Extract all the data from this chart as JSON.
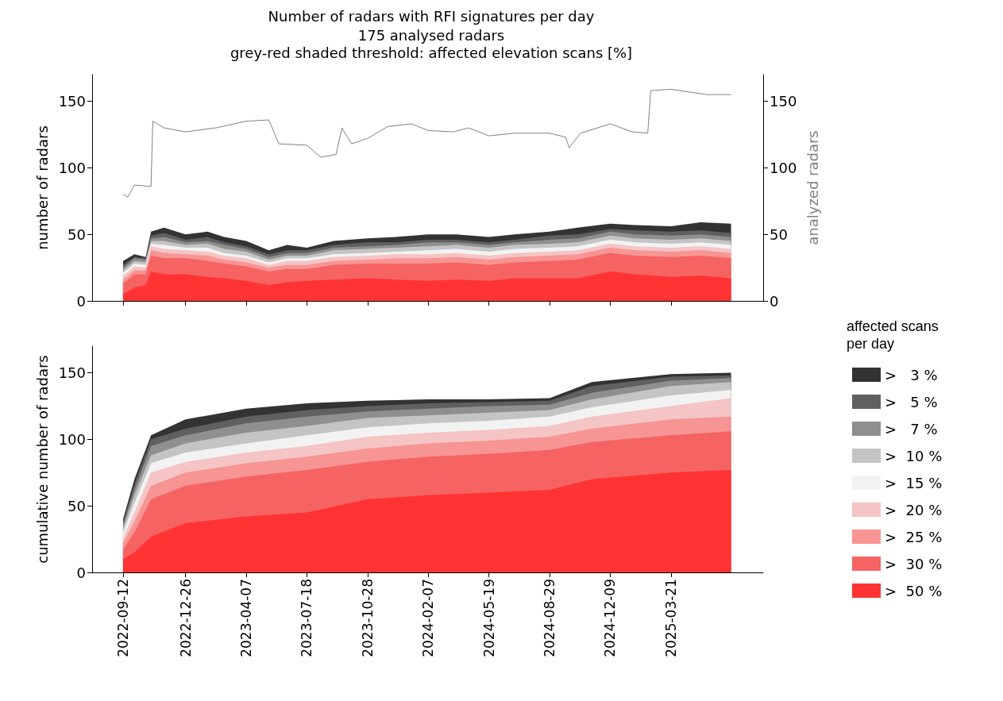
{
  "chart_data": [
    {
      "type": "area",
      "title": "Number of radars with RFI signatures per day",
      "subtitle": "175 analysed radars\ngrey-red shaded threshold: affected elevation scans [%]",
      "ylabel": "number of radars",
      "y2label": "analyzed radars",
      "stacked": true,
      "grid": false,
      "legend": false,
      "tick_labels": "y",
      "x": [
        "2022-09-12",
        "2022-10-01",
        "2022-10-20",
        "2022-10-29",
        "2022-11-20",
        "2022-12-26",
        "2023-02-01",
        "2023-03-01",
        "2023-04-07",
        "2023-05-15",
        "2023-06-15",
        "2023-07-18",
        "2023-09-01",
        "2023-10-28",
        "2023-12-15",
        "2024-02-07",
        "2024-03-25",
        "2024-05-19",
        "2024-07-01",
        "2024-08-29",
        "2024-10-15",
        "2024-12-09",
        "2025-01-20",
        "2025-03-21",
        "2025-05-10",
        "2025-06-30"
      ],
      "xlim": [
        "2022-07-22",
        "2025-08-23"
      ],
      "xticks": [
        "2022-09-12",
        "2022-12-26",
        "2023-04-07",
        "2023-07-18",
        "2023-10-28",
        "2024-02-07",
        "2024-05-19",
        "2024-08-29",
        "2024-12-09",
        "2025-03-21"
      ],
      "ylim": [
        0,
        170
      ],
      "yticks": [
        0,
        50,
        100,
        150
      ],
      "y2lim": [
        0,
        170
      ],
      "y2ticks": [
        0,
        50,
        100,
        150
      ],
      "series": [
        {
          "color": "#ff3333",
          "values": [
            5,
            10,
            12,
            22,
            20,
            20,
            18,
            17,
            15,
            12,
            14,
            15,
            16,
            17,
            16,
            15,
            16,
            15,
            17,
            17,
            17,
            22,
            20,
            18,
            19,
            17
          ]
        },
        {
          "color": "#f56363",
          "values": [
            8,
            10,
            8,
            12,
            12,
            12,
            12,
            11,
            11,
            10,
            10,
            9,
            11,
            11,
            12,
            13,
            13,
            12,
            12,
            13,
            14,
            14,
            14,
            15,
            15,
            15
          ]
        },
        {
          "color": "#f79494",
          "values": [
            3,
            3,
            3,
            4,
            4,
            3,
            4,
            3,
            3,
            3,
            3,
            3,
            3,
            3,
            4,
            4,
            4,
            4,
            4,
            4,
            4,
            4,
            4,
            4,
            4,
            4
          ]
        },
        {
          "color": "#f5c4c4",
          "values": [
            3,
            3,
            2,
            3,
            3,
            3,
            3,
            3,
            3,
            2,
            3,
            3,
            3,
            3,
            3,
            3,
            3,
            3,
            3,
            3,
            3,
            3,
            3,
            3,
            3,
            3
          ]
        },
        {
          "color": "#f2f2f2",
          "values": [
            2,
            2,
            2,
            2,
            3,
            2,
            3,
            2,
            2,
            2,
            2,
            2,
            2,
            2,
            2,
            3,
            3,
            3,
            3,
            3,
            3,
            3,
            3,
            3,
            3,
            3
          ]
        },
        {
          "color": "#c4c4c4",
          "values": [
            2,
            2,
            2,
            2,
            3,
            2,
            3,
            3,
            3,
            2,
            2,
            2,
            3,
            3,
            3,
            3,
            3,
            3,
            3,
            3,
            3,
            3,
            3,
            3,
            3,
            3
          ]
        },
        {
          "color": "#8f8f8f",
          "values": [
            2,
            2,
            2,
            2,
            3,
            2,
            2,
            3,
            2,
            2,
            2,
            2,
            2,
            2,
            2,
            3,
            2,
            2,
            2,
            3,
            3,
            3,
            3,
            3,
            3,
            3
          ]
        },
        {
          "color": "#606060",
          "values": [
            2,
            1,
            1,
            2,
            3,
            2,
            3,
            2,
            2,
            2,
            2,
            2,
            2,
            3,
            2,
            2,
            2,
            2,
            2,
            3,
            3,
            2,
            3,
            3,
            3,
            3
          ]
        },
        {
          "color": "#333333",
          "values": [
            3,
            2,
            1,
            3,
            4,
            4,
            4,
            4,
            4,
            3,
            4,
            2,
            3,
            3,
            4,
            4,
            4,
            4,
            4,
            3,
            5,
            4,
            4,
            4,
            6,
            7
          ]
        },
        {
          "type": "line",
          "axis": "y2",
          "color": "#808080",
          "x": [
            "2022-09-12",
            "2022-09-20",
            "2022-10-01",
            "2022-10-29",
            "2022-11-01",
            "2022-11-20",
            "2022-12-26",
            "2023-02-15",
            "2023-04-07",
            "2023-05-15",
            "2023-06-01",
            "2023-07-18",
            "2023-08-10",
            "2023-09-05",
            "2023-09-15",
            "2023-10-01",
            "2023-10-28",
            "2023-12-01",
            "2024-01-10",
            "2024-02-07",
            "2024-03-20",
            "2024-04-15",
            "2024-05-19",
            "2024-07-01",
            "2024-08-29",
            "2024-09-25",
            "2024-10-01",
            "2024-10-20",
            "2024-12-09",
            "2025-01-15",
            "2025-02-10",
            "2025-02-15",
            "2025-03-21",
            "2025-04-20",
            "2025-05-20",
            "2025-06-30"
          ],
          "values": [
            80,
            78,
            87,
            86,
            135,
            130,
            127,
            130,
            135,
            136,
            118,
            117,
            108,
            110,
            130,
            118,
            122,
            131,
            133,
            128,
            127,
            130,
            124,
            126,
            126,
            123,
            115,
            126,
            133,
            127,
            126,
            158,
            159,
            157,
            155,
            155
          ]
        }
      ]
    },
    {
      "type": "area",
      "ylabel": "cumulative number of radars",
      "stacked": true,
      "grid": false,
      "legend": "right",
      "legend_title": "affected scans per day",
      "x": [
        "2022-09-12",
        "2022-10-01",
        "2022-10-29",
        "2022-12-26",
        "2023-04-07",
        "2023-07-18",
        "2023-10-28",
        "2024-02-07",
        "2024-05-19",
        "2024-08-29",
        "2024-11-08",
        "2025-03-21",
        "2025-06-30"
      ],
      "xlim": [
        "2022-07-22",
        "2025-08-23"
      ],
      "xticks": [
        "2022-09-12",
        "2022-12-26",
        "2023-04-07",
        "2023-07-18",
        "2023-10-28",
        "2024-02-07",
        "2024-05-19",
        "2024-08-29",
        "2024-12-09",
        "2025-03-21"
      ],
      "ylim": [
        0,
        170
      ],
      "yticks": [
        0,
        50,
        100,
        150
      ],
      "series": [
        {
          "name": ">  50 %",
          "color": "#ff3333",
          "values": [
            10,
            15,
            27,
            37,
            42,
            45,
            55,
            58,
            60,
            62,
            70,
            75,
            77
          ]
        },
        {
          "name": ">  30 %",
          "color": "#f56363",
          "values": [
            7,
            15,
            28,
            28,
            30,
            32,
            28,
            29,
            29,
            30,
            28,
            28,
            29
          ]
        },
        {
          "name": ">  25 %",
          "color": "#f79494",
          "values": [
            5,
            8,
            10,
            10,
            10,
            10,
            10,
            10,
            10,
            10,
            10,
            12,
            11
          ]
        },
        {
          "name": ">  20 %",
          "color": "#f5c4c4",
          "values": [
            4,
            7,
            10,
            8,
            8,
            8,
            9,
            8,
            8,
            8,
            9,
            10,
            14
          ]
        },
        {
          "name": ">  15 %",
          "color": "#f2f2f2",
          "values": [
            4,
            7,
            7,
            7,
            7,
            8,
            7,
            7,
            7,
            7,
            7,
            8,
            6
          ]
        },
        {
          "name": ">  10 %",
          "color": "#c4c4c4",
          "values": [
            3,
            6,
            6,
            7,
            8,
            7,
            7,
            6,
            6,
            5,
            6,
            7,
            6
          ]
        },
        {
          "name": ">   7 %",
          "color": "#8f8f8f",
          "values": [
            3,
            4,
            7,
            6,
            7,
            7,
            5,
            5,
            5,
            4,
            5,
            4,
            3
          ]
        },
        {
          "name": ">   5 %",
          "color": "#606060",
          "values": [
            2,
            4,
            5,
            5,
            5,
            5,
            4,
            4,
            3,
            3,
            5,
            3,
            2
          ]
        },
        {
          "name": ">   3 %",
          "color": "#333333",
          "values": [
            2,
            4,
            3,
            7,
            6,
            5,
            4,
            3,
            2,
            2,
            3,
            2,
            2
          ]
        }
      ]
    }
  ]
}
